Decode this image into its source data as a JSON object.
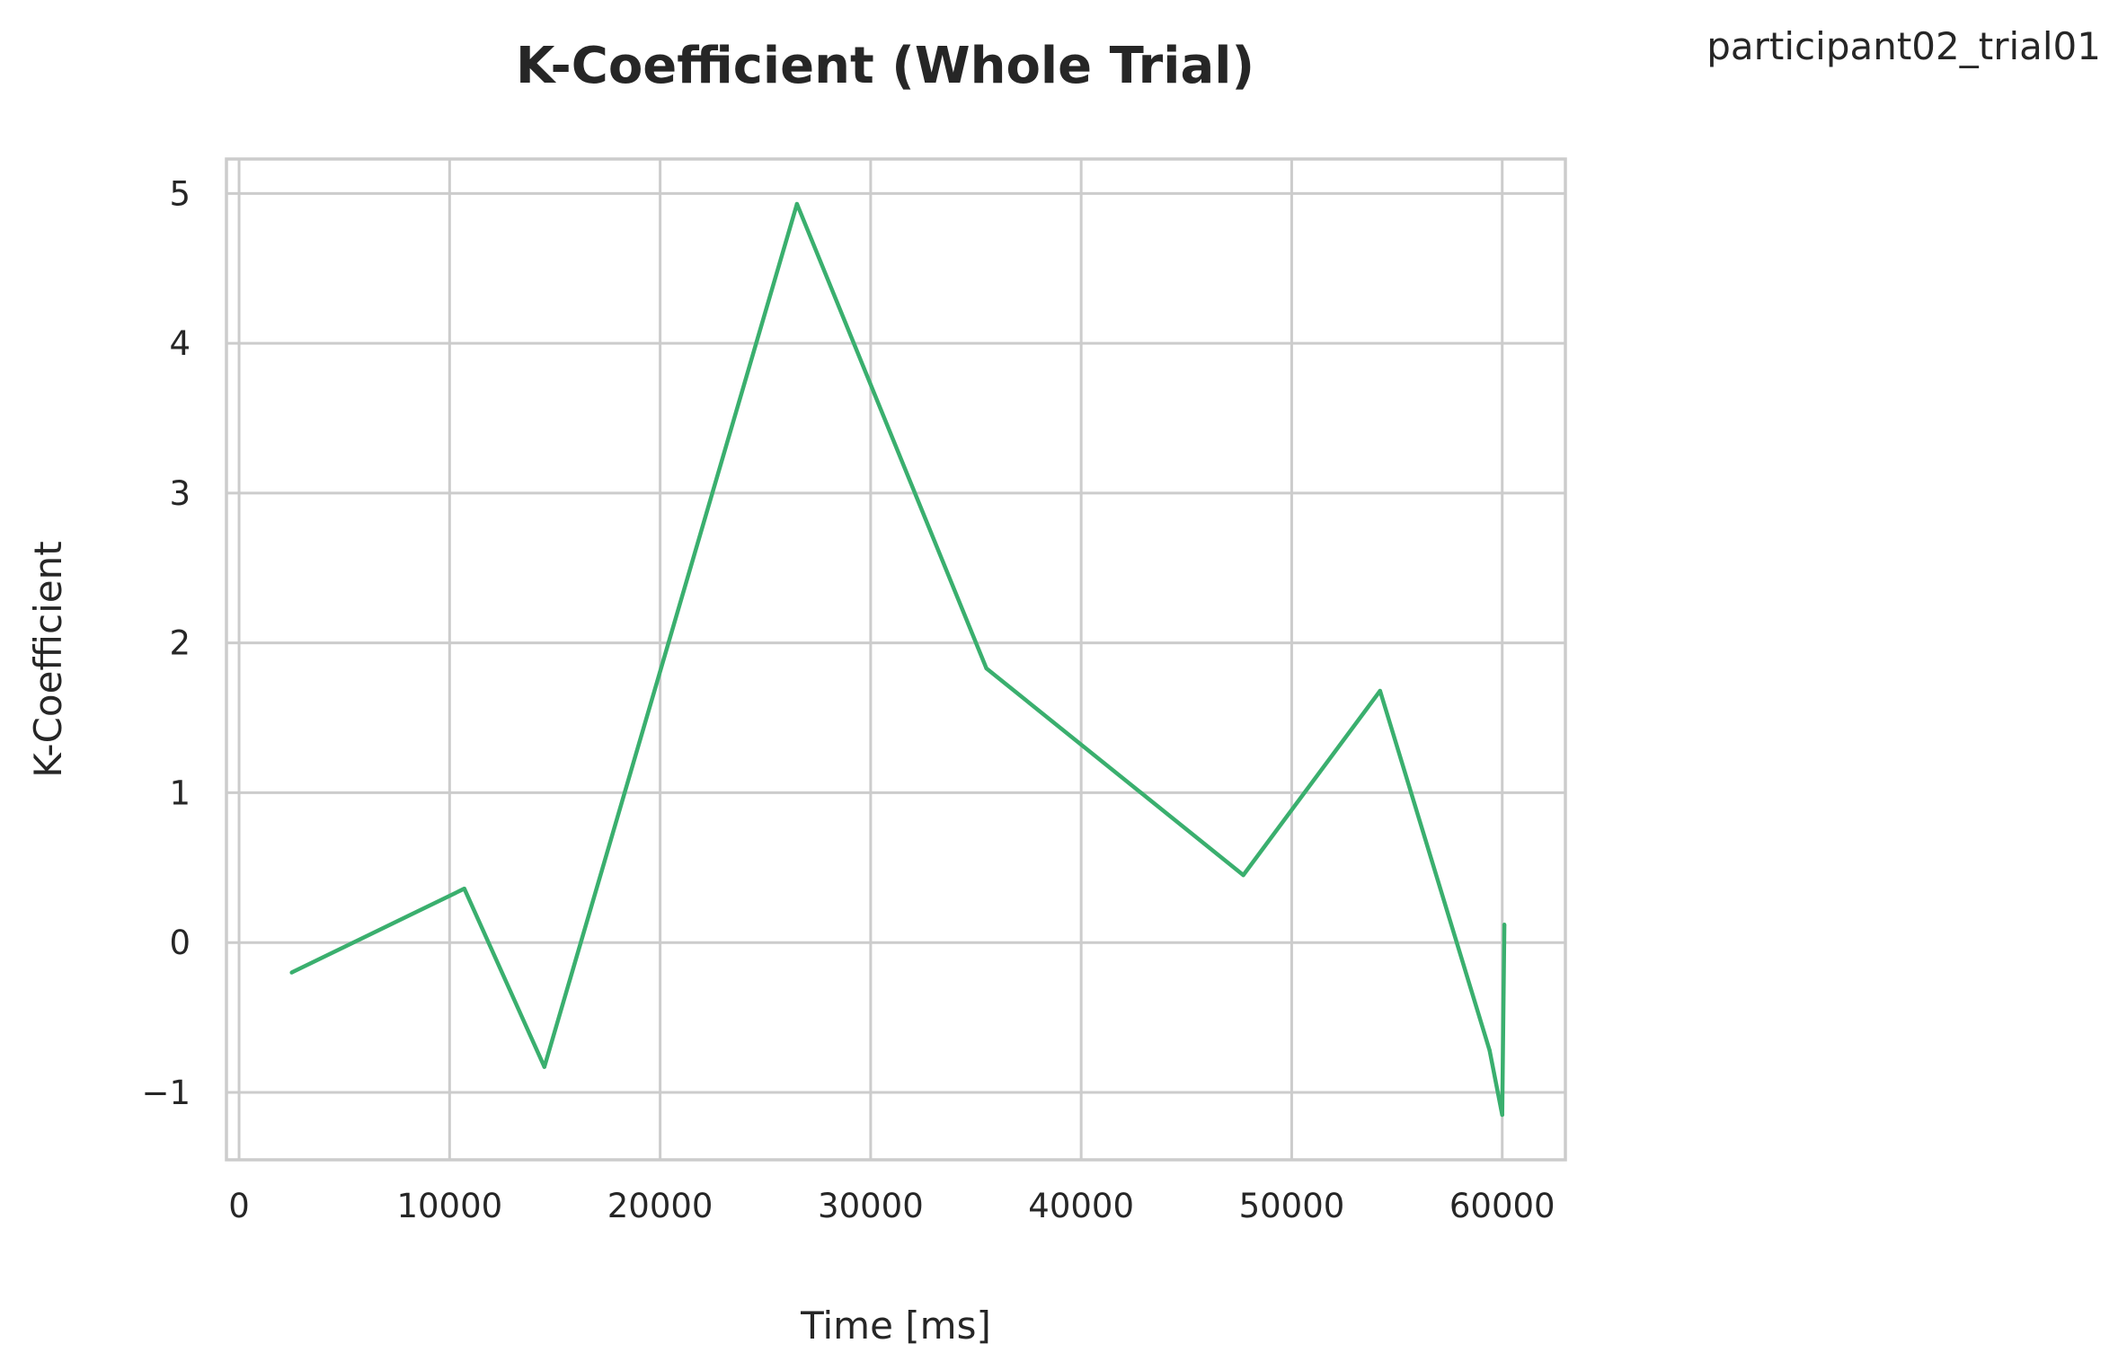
{
  "figure": {
    "run_label": "participant02_trial01"
  },
  "chart_data": {
    "type": "line",
    "title": "K-Coefficient (Whole Trial)",
    "xlabel": "Time [ms]",
    "ylabel": "K-Coefficient",
    "xlim": [
      -600,
      63000
    ],
    "ylim": [
      -1.45,
      5.23
    ],
    "xticks": [
      0,
      10000,
      20000,
      30000,
      40000,
      50000,
      60000
    ],
    "xtick_labels": [
      "0",
      "10000",
      "20000",
      "30000",
      "40000",
      "50000",
      "60000"
    ],
    "yticks": [
      -1,
      0,
      1,
      2,
      3,
      4,
      5
    ],
    "ytick_labels": [
      "−1",
      "0",
      "1",
      "2",
      "3",
      "4",
      "5"
    ],
    "grid": true,
    "line_color": "#3aaf6e",
    "series": [
      {
        "x": [
          2500,
          10700,
          14500,
          26500,
          35500,
          47700,
          54200,
          59400,
          60000,
          60100
        ],
        "y": [
          -0.2,
          0.36,
          -0.83,
          4.93,
          1.83,
          0.45,
          1.68,
          -0.72,
          -1.15,
          0.12
        ]
      }
    ]
  }
}
